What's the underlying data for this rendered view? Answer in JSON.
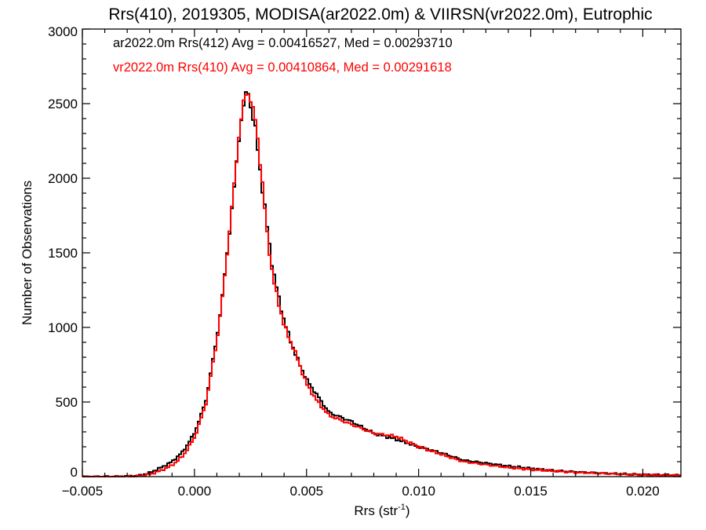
{
  "chart_data": {
    "type": "histogram",
    "title": "Rrs(410), 2019305, MODISA(ar2022.0m) & VIIRSN(vr2022.0m), Eutrophic",
    "xlabel": {
      "base": "Rrs (str",
      "sup": "-1",
      "close": ")"
    },
    "ylabel": "Number of Observations",
    "xlim": [
      -0.005,
      0.0217
    ],
    "ylim": [
      0,
      3000
    ],
    "xticks": [
      -0.005,
      0.0,
      0.005,
      0.01,
      0.015,
      0.02
    ],
    "xtick_labels": [
      "−0.005",
      "0.000",
      "0.005",
      "0.010",
      "0.015",
      "0.020"
    ],
    "yticks": [
      0,
      500,
      1000,
      1500,
      2000,
      2500,
      3000
    ],
    "ytick_labels": [
      "0",
      "500",
      "1000",
      "1500",
      "2000",
      "2500",
      "3000"
    ],
    "legend": {
      "placement": "top-left"
    },
    "series": [
      {
        "name": "ar2022.0m Rrs(412) Avg = 0.00416527, Med = 0.00293710",
        "color": "#000000",
        "points": [
          [
            -0.005,
            0
          ],
          [
            -0.0035,
            0
          ],
          [
            -0.0025,
            5
          ],
          [
            -0.002,
            25
          ],
          [
            -0.0015,
            60
          ],
          [
            -0.001,
            100
          ],
          [
            -0.0005,
            170
          ],
          [
            0.0,
            290
          ],
          [
            0.0005,
            500
          ],
          [
            0.001,
            930
          ],
          [
            0.00125,
            1210
          ],
          [
            0.0015,
            1560
          ],
          [
            0.00175,
            1900
          ],
          [
            0.002,
            2300
          ],
          [
            0.00225,
            2540
          ],
          [
            0.0024,
            2590
          ],
          [
            0.0025,
            2480
          ],
          [
            0.00275,
            2300
          ],
          [
            0.003,
            1960
          ],
          [
            0.00325,
            1670
          ],
          [
            0.0035,
            1380
          ],
          [
            0.004,
            1040
          ],
          [
            0.0045,
            820
          ],
          [
            0.005,
            650
          ],
          [
            0.0055,
            540
          ],
          [
            0.006,
            430
          ],
          [
            0.007,
            370
          ],
          [
            0.008,
            290
          ],
          [
            0.009,
            250
          ],
          [
            0.01,
            200
          ],
          [
            0.011,
            160
          ],
          [
            0.012,
            110
          ],
          [
            0.013,
            90
          ],
          [
            0.014,
            70
          ],
          [
            0.015,
            55
          ],
          [
            0.016,
            40
          ],
          [
            0.017,
            32
          ],
          [
            0.018,
            25
          ],
          [
            0.019,
            18
          ],
          [
            0.02,
            13
          ],
          [
            0.021,
            10
          ],
          [
            0.0217,
            8
          ]
        ]
      },
      {
        "name": "vr2022.0m Rrs(410) Avg = 0.00410864, Med = 0.00291618",
        "color": "#ff0000",
        "points": [
          [
            -0.005,
            0
          ],
          [
            -0.0035,
            0
          ],
          [
            -0.0025,
            3
          ],
          [
            -0.002,
            15
          ],
          [
            -0.0015,
            40
          ],
          [
            -0.001,
            75
          ],
          [
            -0.0005,
            140
          ],
          [
            0.0,
            260
          ],
          [
            0.0005,
            480
          ],
          [
            0.001,
            910
          ],
          [
            0.00125,
            1200
          ],
          [
            0.0015,
            1560
          ],
          [
            0.00175,
            1920
          ],
          [
            0.002,
            2310
          ],
          [
            0.00225,
            2560
          ],
          [
            0.0024,
            2570
          ],
          [
            0.0025,
            2530
          ],
          [
            0.00275,
            2370
          ],
          [
            0.003,
            2010
          ],
          [
            0.00325,
            1620
          ],
          [
            0.0035,
            1330
          ],
          [
            0.004,
            1010
          ],
          [
            0.0045,
            830
          ],
          [
            0.005,
            620
          ],
          [
            0.0055,
            500
          ],
          [
            0.006,
            410
          ],
          [
            0.007,
            350
          ],
          [
            0.008,
            290
          ],
          [
            0.009,
            270
          ],
          [
            0.01,
            200
          ],
          [
            0.011,
            150
          ],
          [
            0.012,
            100
          ],
          [
            0.013,
            80
          ],
          [
            0.014,
            60
          ],
          [
            0.015,
            48
          ],
          [
            0.016,
            38
          ],
          [
            0.017,
            28
          ],
          [
            0.018,
            22
          ],
          [
            0.019,
            16
          ],
          [
            0.02,
            12
          ],
          [
            0.021,
            9
          ],
          [
            0.0217,
            7
          ]
        ]
      }
    ]
  }
}
